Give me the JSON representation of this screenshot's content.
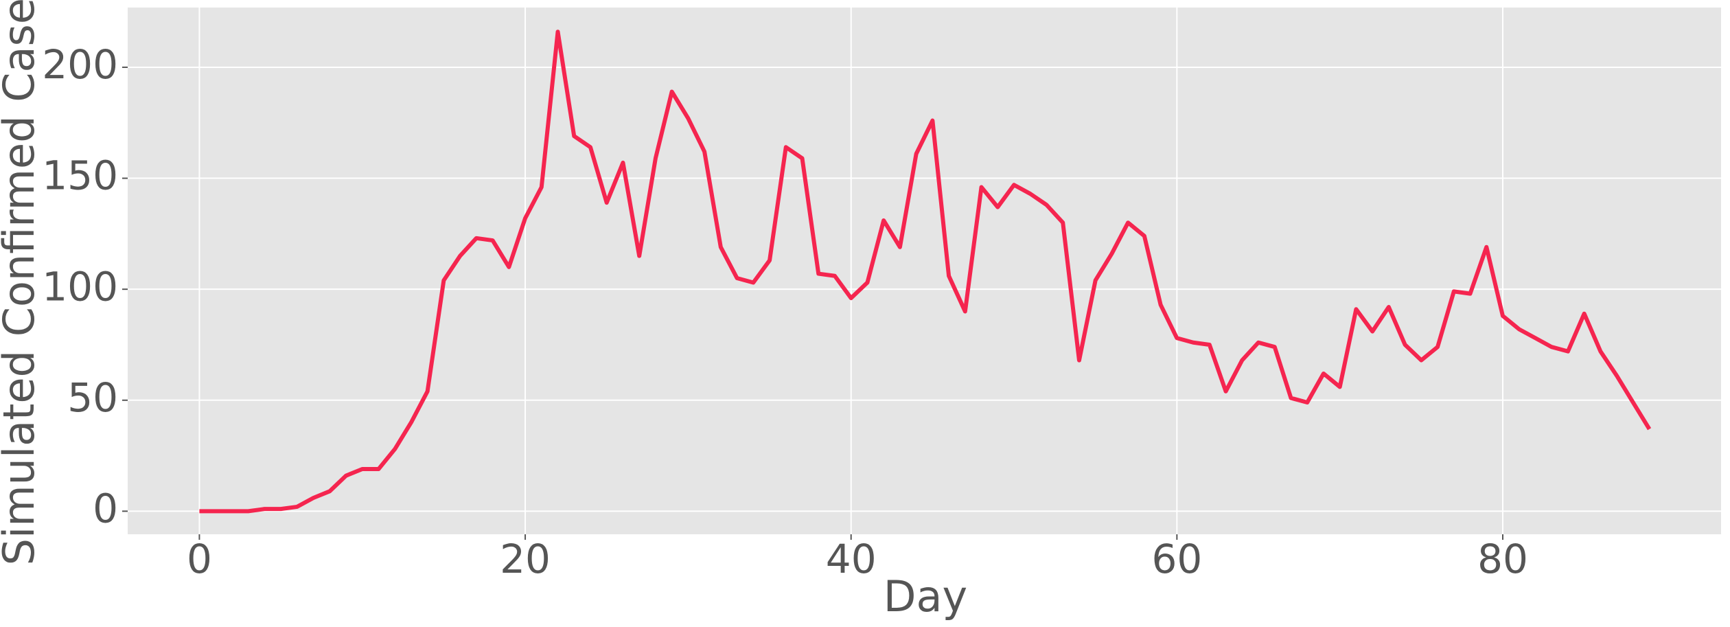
{
  "chart_data": {
    "type": "line",
    "x_label": "Day",
    "y_label": "Simulated Confirmed Cases",
    "x": [
      0,
      1,
      2,
      3,
      4,
      5,
      6,
      7,
      8,
      9,
      10,
      11,
      12,
      13,
      14,
      15,
      16,
      17,
      18,
      19,
      20,
      21,
      22,
      23,
      24,
      25,
      26,
      27,
      28,
      29,
      30,
      31,
      32,
      33,
      34,
      35,
      36,
      37,
      38,
      39,
      40,
      41,
      42,
      43,
      44,
      45,
      46,
      47,
      48,
      49,
      50,
      51,
      52,
      53,
      54,
      55,
      56,
      57,
      58,
      59,
      60,
      61,
      62,
      63,
      64,
      65,
      66,
      67,
      68,
      69,
      70,
      71,
      72,
      73,
      74,
      75,
      76,
      77,
      78,
      79,
      80,
      81,
      82,
      83,
      84,
      85,
      86,
      87,
      88,
      89
    ],
    "values": [
      0,
      0,
      0,
      0,
      1,
      1,
      2,
      6,
      9,
      16,
      19,
      19,
      28,
      40,
      54,
      104,
      115,
      123,
      122,
      110,
      132,
      146,
      216,
      169,
      164,
      139,
      157,
      115,
      159,
      189,
      177,
      162,
      119,
      105,
      103,
      113,
      164,
      159,
      107,
      106,
      96,
      103,
      131,
      119,
      161,
      176,
      106,
      90,
      146,
      137,
      147,
      143,
      138,
      130,
      68,
      104,
      116,
      130,
      124,
      93,
      78,
      76,
      75,
      54,
      68,
      76,
      74,
      51,
      49,
      62,
      56,
      91,
      81,
      92,
      75,
      68,
      74,
      99,
      98,
      119,
      88,
      82,
      78,
      74,
      72,
      89,
      72,
      61,
      49,
      37
    ],
    "color": "#f5254f",
    "xlim": [
      -4.4,
      93.4
    ],
    "ylim": [
      -10.4,
      226.9
    ],
    "xticks": [
      0,
      20,
      40,
      60,
      80
    ],
    "yticks": [
      0,
      50,
      100,
      150,
      200
    ],
    "grid": true
  }
}
